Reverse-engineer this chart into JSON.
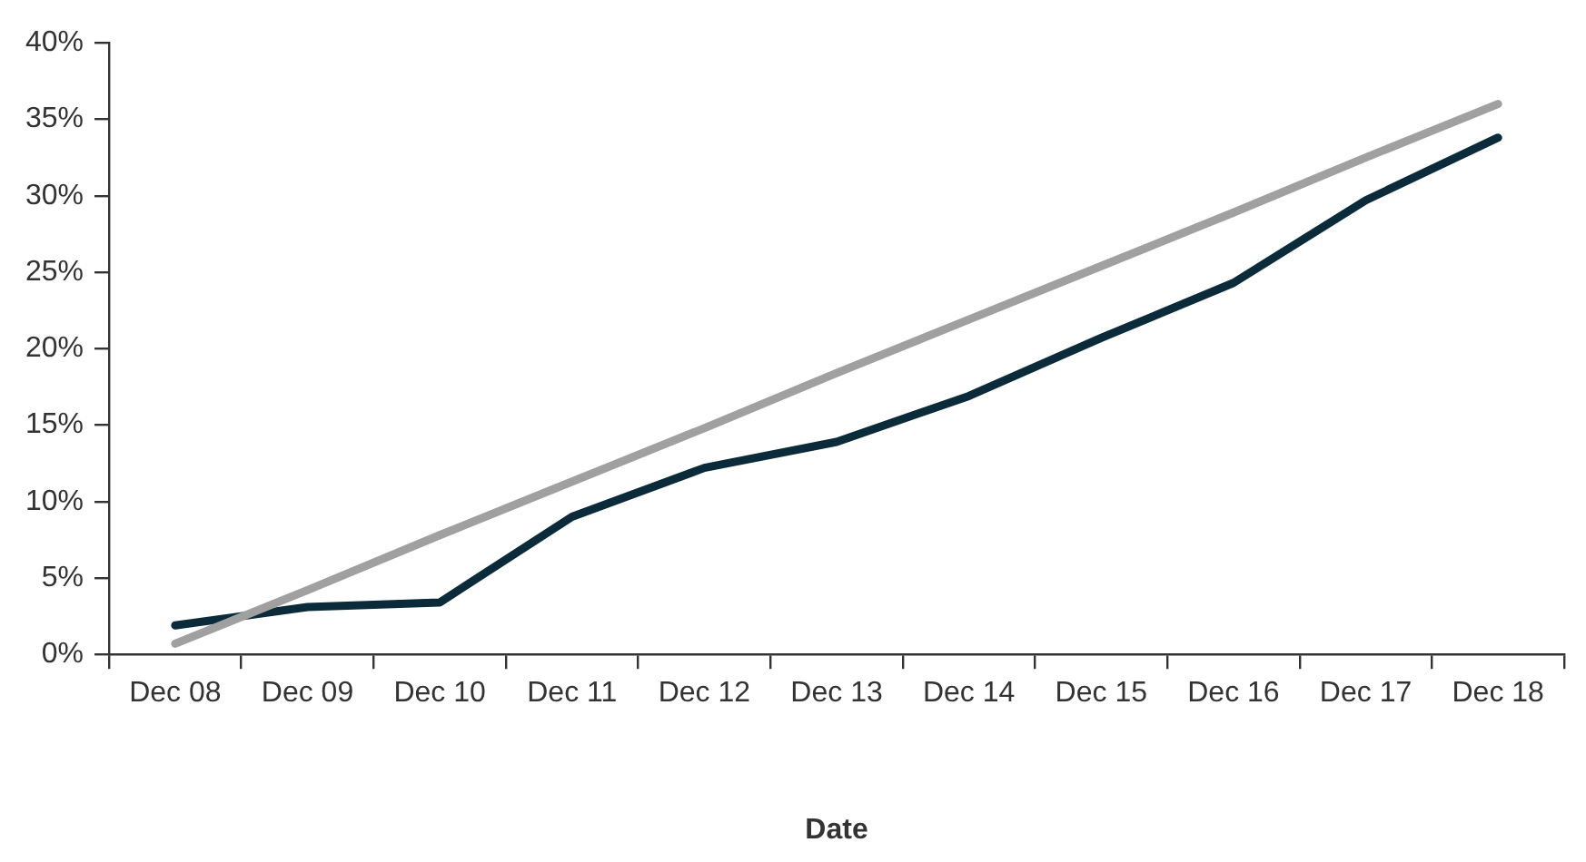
{
  "chart_data": {
    "type": "line",
    "xlabel": "Date",
    "categories": [
      "Dec 08",
      "Dec 09",
      "Dec 10",
      "Dec 11",
      "Dec 12",
      "Dec 13",
      "Dec 14",
      "Dec 15",
      "Dec 16",
      "Dec 17",
      "Dec 18"
    ],
    "series": [
      {
        "color": "#a0a0a0",
        "values": [
          0.7,
          4.2,
          7.8,
          11.3,
          14.8,
          18.4,
          21.9,
          25.4,
          28.9,
          32.5,
          36.0
        ]
      },
      {
        "color": "#0b2b3b",
        "values": [
          1.9,
          3.1,
          3.4,
          9.0,
          12.2,
          13.9,
          16.9,
          20.7,
          24.3,
          29.7,
          33.8
        ]
      }
    ],
    "ylim": [
      0,
      40
    ],
    "yticks": [
      {
        "value": 0,
        "label": "0%"
      },
      {
        "value": 5,
        "label": "5%"
      },
      {
        "value": 10,
        "label": "10%"
      },
      {
        "value": 15,
        "label": "15%"
      },
      {
        "value": 20,
        "label": "20%"
      },
      {
        "value": 25,
        "label": "25%"
      },
      {
        "value": 30,
        "label": "30%"
      },
      {
        "value": 35,
        "label": "35%"
      },
      {
        "value": 40,
        "label": "40%"
      }
    ],
    "grid": false,
    "legend": false,
    "marker": "none",
    "line_style": "solid"
  }
}
